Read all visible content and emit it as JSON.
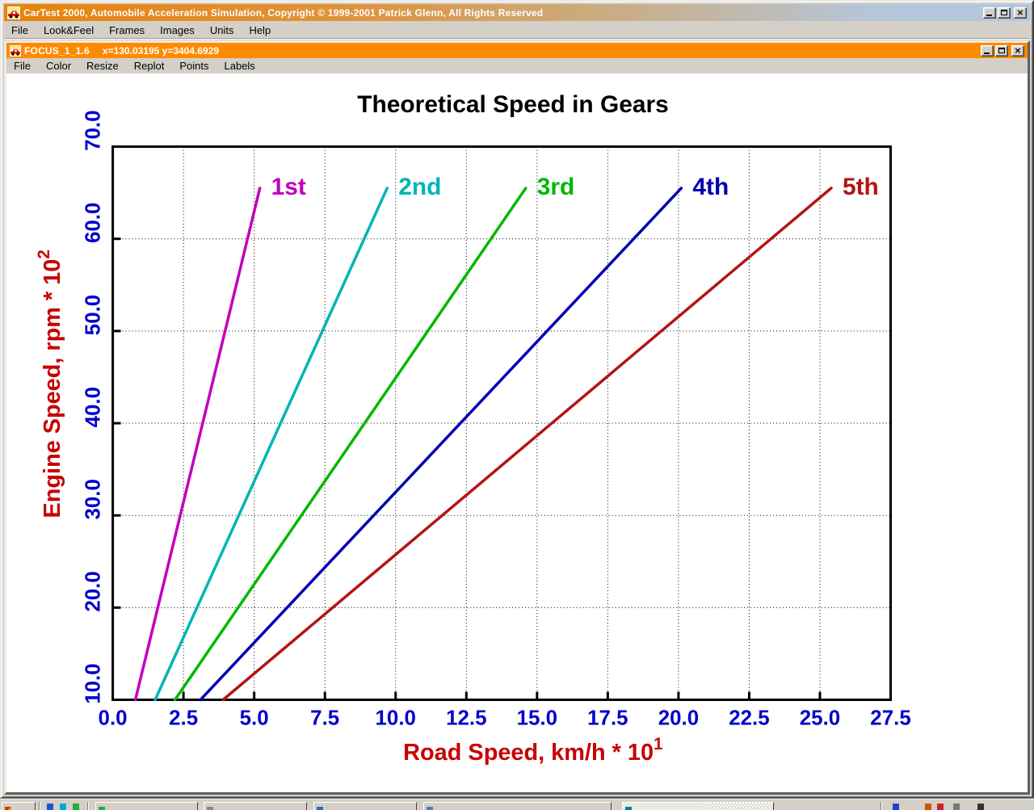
{
  "app_window": {
    "title": "CarTest 2000, Automobile Acceleration Simulation, Copyright © 1999-2001 Patrick Glenn, All Rights Reserved",
    "menu": [
      "File",
      "Look&Feel",
      "Frames",
      "Images",
      "Units",
      "Help"
    ],
    "window_buttons": [
      "minimize",
      "maximize",
      "close"
    ],
    "icons": {
      "app": "car-icon",
      "close_glyph": "×"
    }
  },
  "plot_window": {
    "title": "FOCUS_1_1.6",
    "cursor_readout": "x=130.03195 y=3404.6929",
    "menu": [
      "File",
      "Color",
      "Resize",
      "Replot",
      "Points",
      "Labels"
    ],
    "window_buttons": [
      "minimize",
      "maximize",
      "close"
    ],
    "icons": {
      "app": "car-icon",
      "close_glyph": "×"
    }
  },
  "colors": {
    "app_titlebar_gradient_start": "#E8820A",
    "app_titlebar_gradient_end": "#B2C7DE",
    "plot_titlebar": "#FF8A00",
    "chrome": "#D4D0C8"
  },
  "chart_data": {
    "type": "line",
    "title": "Theoretical Speed in Gears",
    "xlabel": {
      "text": "Road Speed, km/h * 10",
      "sup": "1"
    },
    "ylabel": {
      "text": "Engine Speed, rpm * 10",
      "sup": "2"
    },
    "xlim": [
      0,
      27.5
    ],
    "ylim": [
      10,
      70
    ],
    "x_ticks": [
      "0.0",
      "2.5",
      "5.0",
      "7.5",
      "10.0",
      "12.5",
      "15.0",
      "17.5",
      "20.0",
      "22.5",
      "25.0",
      "27.5"
    ],
    "y_ticks": [
      "10.0",
      "20.0",
      "30.0",
      "40.0",
      "50.0",
      "60.0",
      "70.0"
    ],
    "grid": "dotted",
    "legend_position": "labels-at-line-ends",
    "series": [
      {
        "name": "1st",
        "color": "#C000C0",
        "points": [
          [
            0.8,
            10
          ],
          [
            5.2,
            65.5
          ]
        ]
      },
      {
        "name": "2nd",
        "color": "#00B4B4",
        "points": [
          [
            1.5,
            10
          ],
          [
            9.7,
            65.5
          ]
        ]
      },
      {
        "name": "3rd",
        "color": "#00B800",
        "points": [
          [
            2.2,
            10
          ],
          [
            14.6,
            65.5
          ]
        ]
      },
      {
        "name": "4th",
        "color": "#0000B4",
        "points": [
          [
            3.1,
            10
          ],
          [
            20.1,
            65.5
          ]
        ]
      },
      {
        "name": "5th",
        "color": "#B41414",
        "points": [
          [
            3.9,
            10
          ],
          [
            25.4,
            65.5
          ]
        ]
      }
    ],
    "styles": {
      "title_color": "#000000",
      "axis_label_color": "#C80000",
      "tick_label_color": "#0000CC",
      "line_width": 3.5
    }
  }
}
